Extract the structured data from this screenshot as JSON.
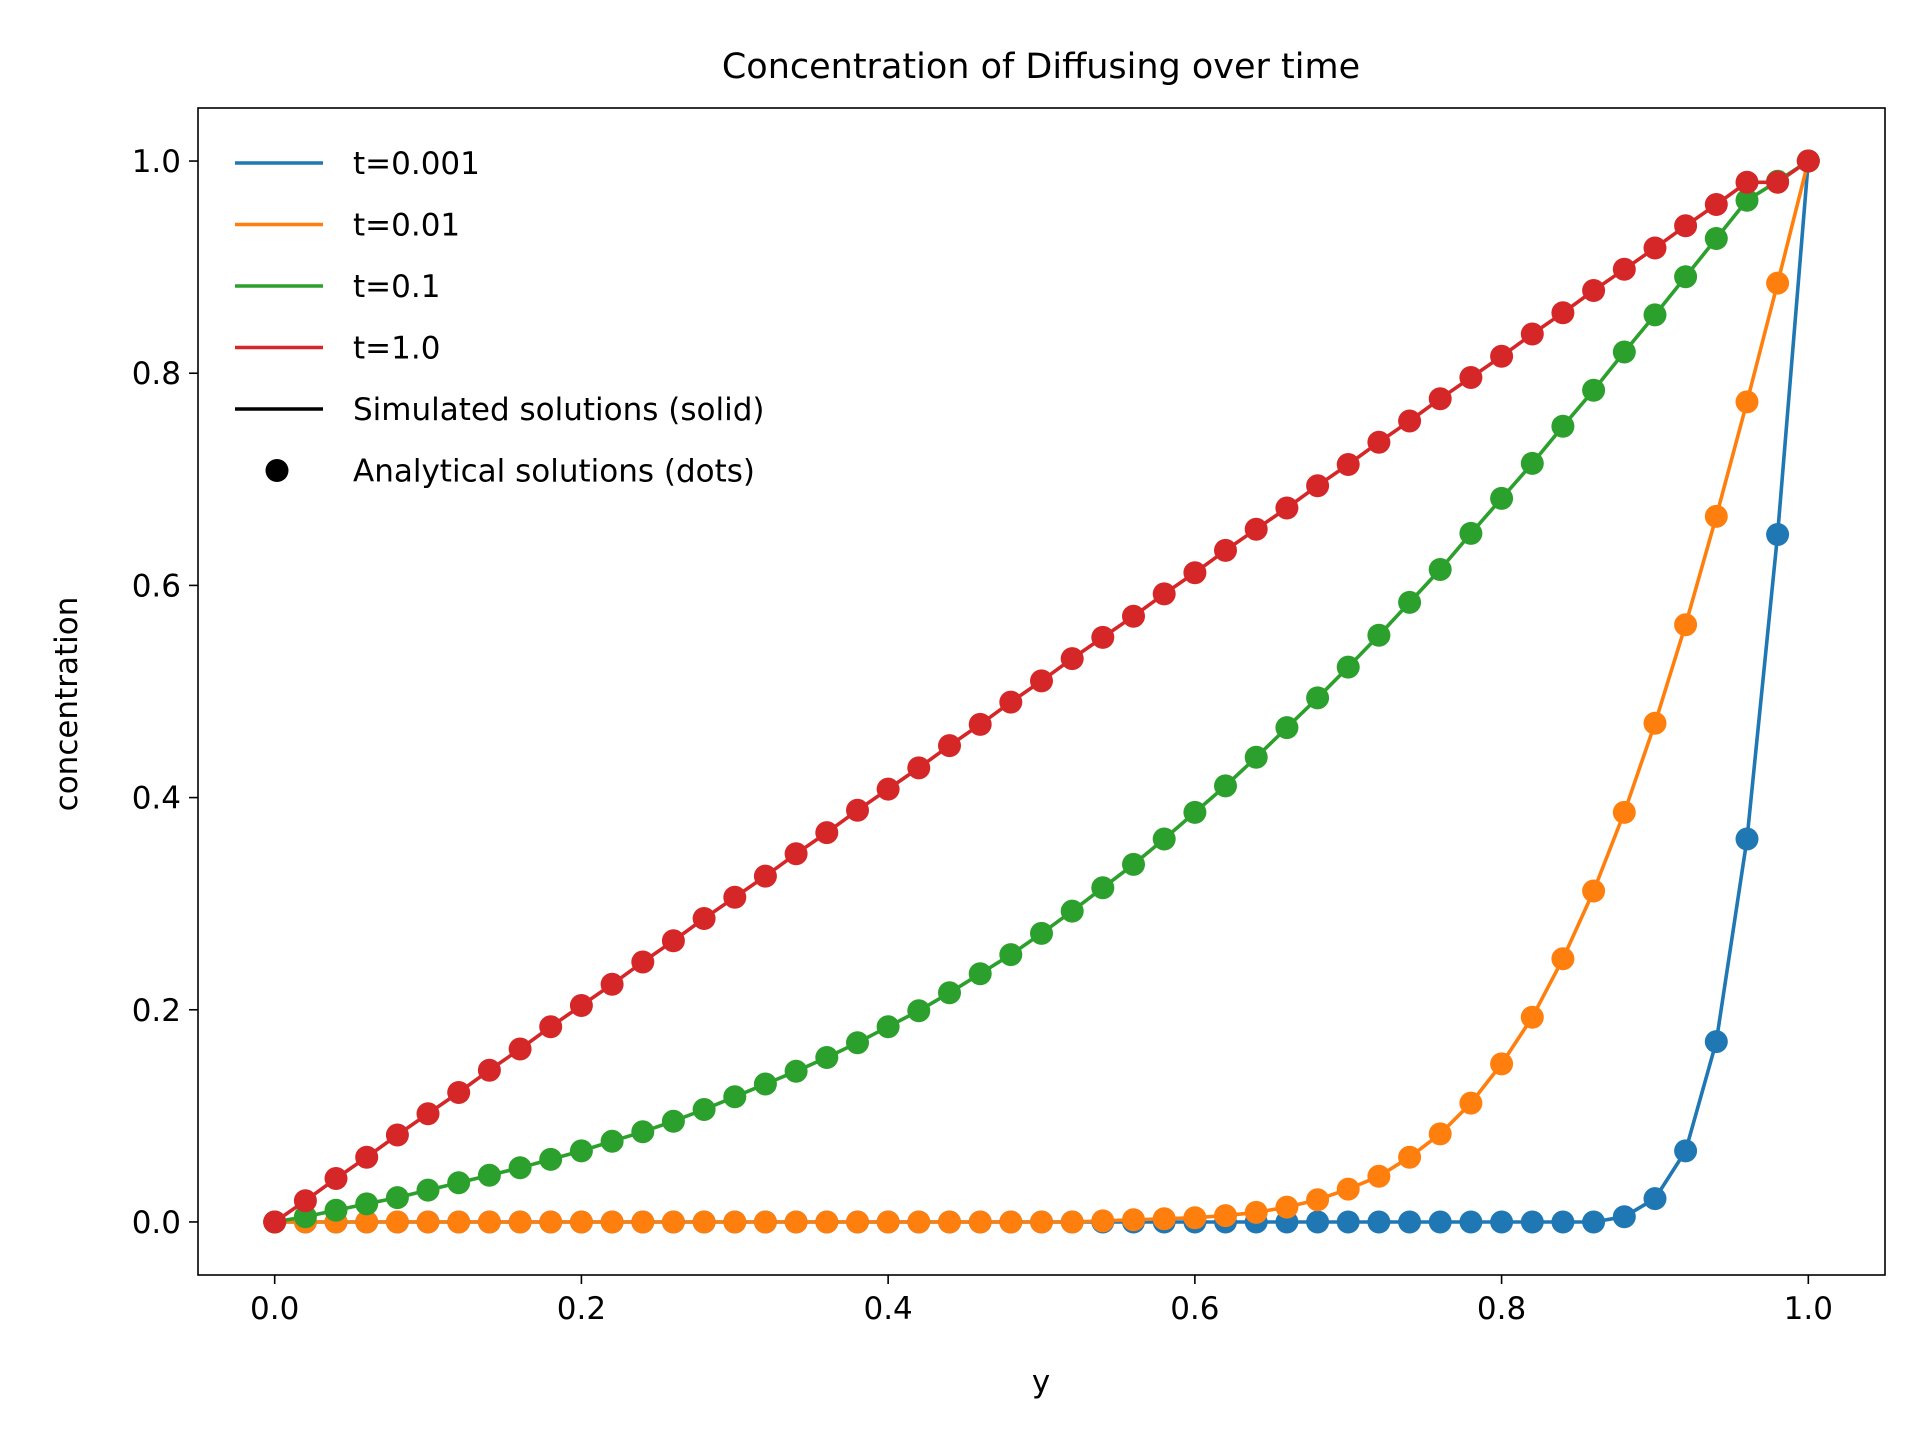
{
  "chart_data": {
    "type": "line",
    "title": "Concentration of Diffusing over time",
    "xlabel": "y",
    "ylabel": "concentration",
    "xlim": [
      -0.05,
      1.05
    ],
    "ylim": [
      -0.05,
      1.05
    ],
    "xticks": [
      0.0,
      0.2,
      0.4,
      0.6,
      0.8,
      1.0
    ],
    "xtick_labels": [
      "0.0",
      "0.2",
      "0.4",
      "0.6",
      "0.8",
      "1.0"
    ],
    "yticks": [
      0.0,
      0.2,
      0.4,
      0.6,
      0.8,
      1.0
    ],
    "ytick_labels": [
      "0.0",
      "0.2",
      "0.4",
      "0.6",
      "0.8",
      "1.0"
    ],
    "grid": false,
    "legend_position": "upper-left",
    "x": [
      0.0,
      0.02,
      0.04,
      0.06,
      0.08,
      0.1,
      0.12,
      0.14,
      0.16,
      0.18,
      0.2,
      0.22,
      0.24,
      0.26,
      0.28,
      0.3,
      0.32,
      0.34,
      0.36,
      0.38,
      0.4,
      0.42,
      0.44,
      0.46,
      0.48,
      0.5,
      0.52,
      0.54,
      0.56,
      0.58,
      0.6,
      0.62,
      0.64,
      0.66,
      0.68,
      0.7,
      0.72,
      0.74,
      0.76,
      0.78,
      0.8,
      0.82,
      0.84,
      0.86,
      0.88,
      0.9,
      0.92,
      0.94,
      0.96,
      0.98,
      1.0
    ],
    "series": [
      {
        "name": "t=0.001",
        "color": "#1f77b4",
        "values": [
          0,
          0,
          0,
          0,
          0,
          0,
          0,
          0,
          0,
          0,
          0,
          0,
          0,
          0,
          0,
          0,
          0,
          0,
          0,
          0,
          0,
          0,
          0,
          0,
          0,
          0,
          0,
          0,
          0,
          0,
          0,
          0,
          0,
          0,
          0,
          0,
          0,
          0,
          0,
          0,
          0,
          0,
          0,
          0,
          0.005,
          0.022,
          0.067,
          0.17,
          0.361,
          0.648,
          1.0
        ]
      },
      {
        "name": "t=0.01",
        "color": "#ff7f0e",
        "values": [
          0,
          0,
          0,
          0,
          0,
          0,
          0,
          0,
          0,
          0,
          0,
          0,
          0,
          0,
          0,
          0,
          0,
          0,
          0,
          0,
          0,
          0,
          0,
          0,
          0,
          0,
          0,
          0.001,
          0.002,
          0.003,
          0.004,
          0.006,
          0.009,
          0.014,
          0.021,
          0.031,
          0.043,
          0.061,
          0.083,
          0.112,
          0.149,
          0.193,
          0.248,
          0.312,
          0.386,
          0.47,
          0.563,
          0.665,
          0.773,
          0.885,
          1.0
        ]
      },
      {
        "name": "t=0.1",
        "color": "#2ca02c",
        "values": [
          0,
          0.005,
          0.011,
          0.017,
          0.023,
          0.03,
          0.037,
          0.044,
          0.051,
          0.059,
          0.067,
          0.076,
          0.085,
          0.095,
          0.106,
          0.118,
          0.13,
          0.142,
          0.155,
          0.169,
          0.184,
          0.199,
          0.216,
          0.234,
          0.252,
          0.272,
          0.293,
          0.315,
          0.337,
          0.361,
          0.386,
          0.411,
          0.438,
          0.466,
          0.494,
          0.523,
          0.553,
          0.584,
          0.615,
          0.649,
          0.682,
          0.715,
          0.75,
          0.784,
          0.82,
          0.855,
          0.891,
          0.927,
          0.963,
          0.981,
          1.0
        ]
      },
      {
        "name": "t=1.0",
        "color": "#d62728",
        "values": [
          0,
          0.02,
          0.041,
          0.061,
          0.082,
          0.102,
          0.122,
          0.143,
          0.163,
          0.184,
          0.204,
          0.224,
          0.245,
          0.265,
          0.286,
          0.306,
          0.326,
          0.347,
          0.367,
          0.388,
          0.408,
          0.428,
          0.449,
          0.469,
          0.49,
          0.51,
          0.531,
          0.551,
          0.571,
          0.592,
          0.612,
          0.633,
          0.653,
          0.673,
          0.694,
          0.714,
          0.735,
          0.755,
          0.776,
          0.796,
          0.816,
          0.837,
          0.857,
          0.878,
          0.898,
          0.918,
          0.939,
          0.959,
          0.98,
          0.98,
          1.0
        ]
      }
    ],
    "legend": [
      {
        "label": "t=0.001",
        "kind": "line",
        "color": "#1f77b4"
      },
      {
        "label": "t=0.01",
        "kind": "line",
        "color": "#ff7f0e"
      },
      {
        "label": "t=0.1",
        "kind": "line",
        "color": "#2ca02c"
      },
      {
        "label": "t=1.0",
        "kind": "line",
        "color": "#d62728"
      },
      {
        "label": "Simulated solutions (solid)",
        "kind": "line",
        "color": "#000000"
      },
      {
        "label": "Analytical solutions (dots)",
        "kind": "dot",
        "color": "#000000"
      }
    ]
  }
}
